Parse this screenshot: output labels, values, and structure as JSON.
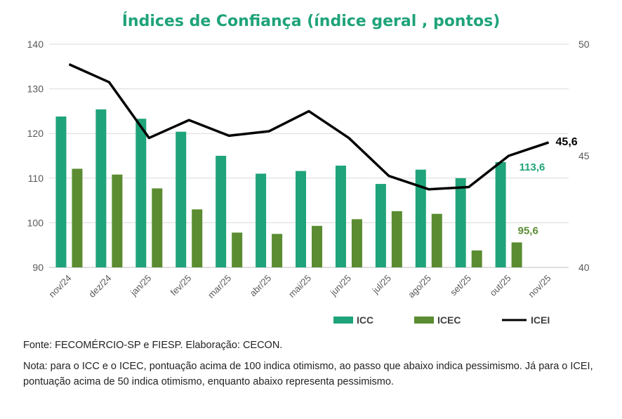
{
  "chart_data": {
    "type": "bar+line",
    "title": "Índices de Confiança (índice geral , pontos)",
    "categories": [
      "nov/24",
      "dez/24",
      "jan/25",
      "fev/25",
      "mar/25",
      "abr/25",
      "mai/25",
      "jun/25",
      "jul/25",
      "ago/25",
      "set/25",
      "out/25",
      "nov/25"
    ],
    "y_left": {
      "ylim": [
        90,
        140
      ],
      "ticks": [
        "90",
        "100",
        "110",
        "120",
        "130",
        "140"
      ]
    },
    "y_right": {
      "ylim": [
        40,
        50
      ],
      "ticks": [
        "40",
        "45",
        "50"
      ]
    },
    "series": [
      {
        "name": "ICC",
        "type": "bar",
        "axis": "left",
        "color": "#1fa37a",
        "values": [
          123.8,
          125.4,
          123.3,
          120.4,
          115.0,
          111.0,
          111.6,
          112.8,
          108.7,
          111.9,
          110.0,
          113.6,
          null
        ]
      },
      {
        "name": "ICEC",
        "type": "bar",
        "axis": "left",
        "color": "#5b8c32",
        "values": [
          112.1,
          110.8,
          107.7,
          103.0,
          97.8,
          97.5,
          99.3,
          100.8,
          102.6,
          102.0,
          93.8,
          95.6,
          null
        ]
      },
      {
        "name": "ICEI",
        "type": "line",
        "axis": "right",
        "color": "#000000",
        "values": [
          49.1,
          48.3,
          45.8,
          46.6,
          45.9,
          46.1,
          47.0,
          45.8,
          44.1,
          43.5,
          43.6,
          45.0,
          45.6
        ]
      }
    ],
    "data_labels": {
      "icc_last": "113,6",
      "icec_last": "95,6",
      "icei_last": "45,6"
    },
    "legend": {
      "position": "bottom-right",
      "items": [
        "ICC",
        "ICEC",
        "ICEI"
      ]
    }
  },
  "footer": {
    "source": "Fonte: FECOMÉRCIO-SP e FIESP. Elaboração: CECON.",
    "note": "Nota: para o ICC e o ICEC, pontuação acima de 100 indica otimismo, ao passo que abaixo indica pessimismo. Já para o ICEI, pontuação acima de 50 indica otimismo, enquanto abaixo representa pessimismo."
  }
}
